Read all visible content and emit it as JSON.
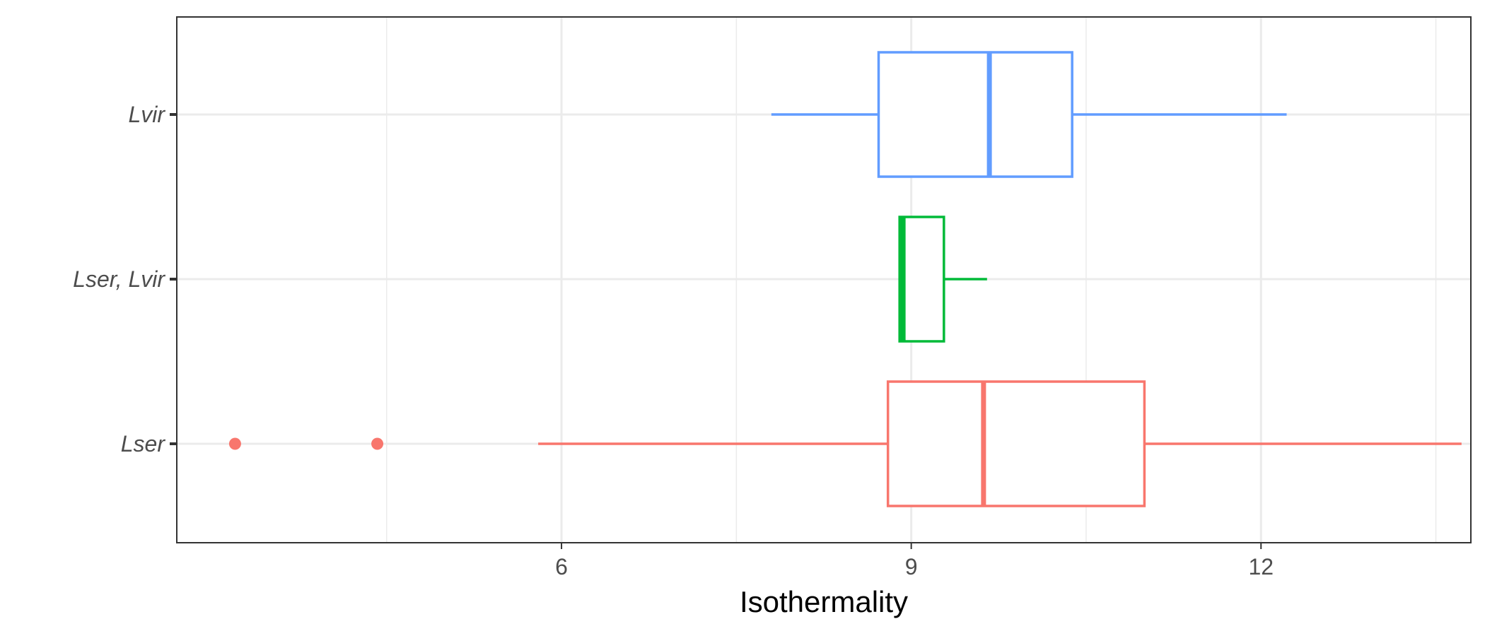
{
  "chart_data": {
    "type": "boxplot",
    "orientation": "horizontal",
    "title": "",
    "xlabel": "Isothermality",
    "ylabel": "",
    "xlim": [
      2.7,
      13.8
    ],
    "x_ticks": [
      6,
      9,
      12
    ],
    "x_minor_gridlines": [
      4.5,
      7.5,
      10.5,
      13.5
    ],
    "categories": [
      "Lser",
      "Lser, Lvir",
      "Lvir"
    ],
    "grid": true,
    "legend": "none",
    "series": [
      {
        "category": "Lser",
        "color": "#F8766D",
        "whisker_low": 5.8,
        "q1": 8.8,
        "median": 9.62,
        "q3": 11.0,
        "whisker_high": 13.72,
        "outliers": [
          3.2,
          4.42
        ]
      },
      {
        "category": "Lser, Lvir",
        "color": "#00BA38",
        "whisker_low": 8.9,
        "q1": 8.9,
        "median": 8.93,
        "q3": 9.28,
        "whisker_high": 9.65,
        "outliers": []
      },
      {
        "category": "Lvir",
        "color": "#619CFF",
        "whisker_low": 7.8,
        "q1": 8.72,
        "median": 9.67,
        "q3": 10.38,
        "whisker_high": 12.22,
        "outliers": []
      }
    ]
  }
}
